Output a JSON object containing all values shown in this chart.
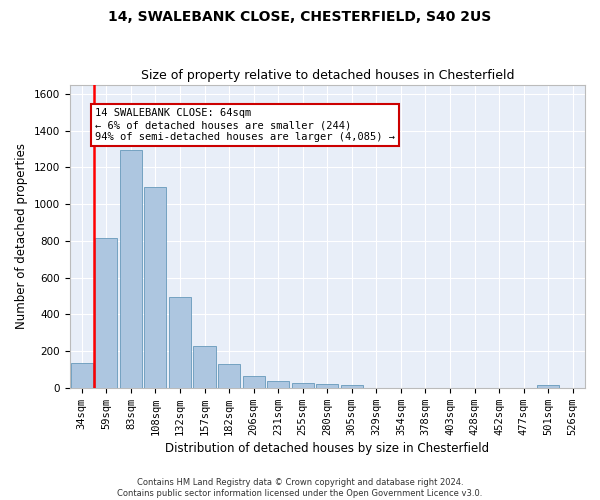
{
  "title1": "14, SWALEBANK CLOSE, CHESTERFIELD, S40 2US",
  "title2": "Size of property relative to detached houses in Chesterfield",
  "xlabel": "Distribution of detached houses by size in Chesterfield",
  "ylabel": "Number of detached properties",
  "bins": [
    "34sqm",
    "59sqm",
    "83sqm",
    "108sqm",
    "132sqm",
    "157sqm",
    "182sqm",
    "206sqm",
    "231sqm",
    "255sqm",
    "280sqm",
    "305sqm",
    "329sqm",
    "354sqm",
    "378sqm",
    "403sqm",
    "428sqm",
    "452sqm",
    "477sqm",
    "501sqm",
    "526sqm"
  ],
  "bar_values": [
    135,
    815,
    1295,
    1095,
    495,
    230,
    130,
    65,
    38,
    27,
    20,
    17,
    0,
    0,
    0,
    0,
    0,
    0,
    0,
    15,
    0
  ],
  "bar_color": "#adc6e0",
  "bar_edge_color": "#6699bb",
  "annotation_text": "14 SWALEBANK CLOSE: 64sqm\n← 6% of detached houses are smaller (244)\n94% of semi-detached houses are larger (4,085) →",
  "annotation_box_color": "#ffffff",
  "annotation_border_color": "#cc0000",
  "red_line_x": 0.5,
  "ylim": [
    0,
    1650
  ],
  "yticks": [
    0,
    200,
    400,
    600,
    800,
    1000,
    1200,
    1400,
    1600
  ],
  "bg_color": "#e8eef8",
  "footnote": "Contains HM Land Registry data © Crown copyright and database right 2024.\nContains public sector information licensed under the Open Government Licence v3.0.",
  "title1_fontsize": 10,
  "title2_fontsize": 9,
  "xlabel_fontsize": 8.5,
  "ylabel_fontsize": 8.5,
  "tick_fontsize": 7.5,
  "annot_fontsize": 7.5,
  "footnote_fontsize": 6.0
}
